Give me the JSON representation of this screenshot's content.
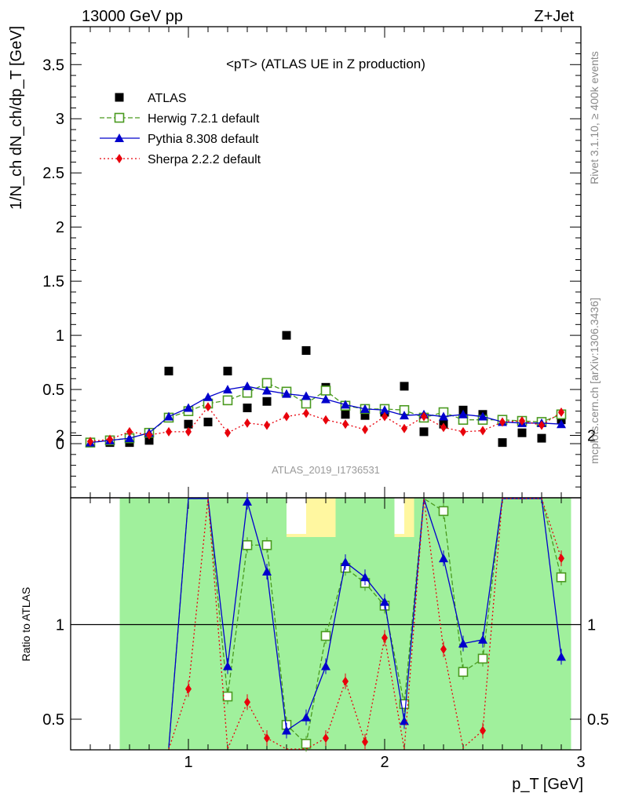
{
  "header": {
    "left": "13000 GeV pp",
    "right": "Z+Jet"
  },
  "side_labels": {
    "rivet": "Rivet 3.1.10, ≥ 400k events",
    "mcplots": "mcplots.cern.ch [arXiv:1306.3436]"
  },
  "chart_data": [
    {
      "type": "scatter",
      "title": "<pT> (ATLAS UE in Z production)",
      "ylabel": "1/N_ch dN_ch/dp_T [GeV]",
      "xlabel": "p_T [GeV]",
      "watermark": "ATLAS_2019_I1736531",
      "xlim": [
        0.4,
        3.0
      ],
      "ylim": [
        -0.5,
        3.85
      ],
      "yticks": [
        "0",
        "0.5",
        "1",
        "1.5",
        "2",
        "2.5",
        "3",
        "3.5"
      ],
      "xticks": [
        "1",
        "2",
        "3"
      ],
      "x": [
        0.5,
        0.6,
        0.7,
        0.8,
        0.9,
        1.0,
        1.1,
        1.2,
        1.3,
        1.4,
        1.5,
        1.6,
        1.7,
        1.8,
        1.9,
        2.0,
        2.1,
        2.2,
        2.3,
        2.4,
        2.5,
        2.6,
        2.7,
        2.8,
        2.9
      ],
      "series": [
        {
          "name": "ATLAS",
          "color": "#000000",
          "marker": "square",
          "values": [
            0.01,
            0.01,
            0.01,
            0.03,
            0.67,
            0.18,
            0.2,
            0.67,
            0.33,
            0.39,
            1.0,
            0.86,
            0.52,
            0.27,
            0.26,
            0.29,
            0.53,
            0.11,
            0.18,
            0.31,
            0.27,
            0.01,
            0.1,
            0.05,
            0.22
          ]
        },
        {
          "name": "Herwig 7.2.1 default",
          "color": "#4a9a1f",
          "marker": "open-square",
          "dash": "6,3",
          "values": [
            0.01,
            0.03,
            0.05,
            0.1,
            0.24,
            0.3,
            0.37,
            0.4,
            0.47,
            0.56,
            0.48,
            0.37,
            0.49,
            0.35,
            0.32,
            0.32,
            0.31,
            0.24,
            0.29,
            0.22,
            0.22,
            0.22,
            0.21,
            0.2,
            0.27
          ]
        },
        {
          "name": "Pythia 8.308 default",
          "color": "#0000cc",
          "marker": "triangle",
          "values": [
            0.01,
            0.03,
            0.05,
            0.1,
            0.25,
            0.33,
            0.43,
            0.5,
            0.53,
            0.49,
            0.46,
            0.44,
            0.41,
            0.36,
            0.32,
            0.31,
            0.26,
            0.27,
            0.25,
            0.27,
            0.25,
            0.2,
            0.19,
            0.19,
            0.18
          ]
        },
        {
          "name": "Sherpa 2.2.2 default",
          "color": "#e8000b",
          "marker": "diamond",
          "dash": "2,3",
          "values": [
            0.02,
            0.04,
            0.11,
            0.08,
            0.11,
            0.11,
            0.34,
            0.1,
            0.19,
            0.17,
            0.25,
            0.28,
            0.22,
            0.18,
            0.13,
            0.25,
            0.14,
            0.25,
            0.15,
            0.11,
            0.12,
            0.2,
            0.21,
            0.17,
            0.29
          ]
        }
      ]
    },
    {
      "type": "line",
      "ylabel": "Ratio to ATLAS",
      "xlim": [
        0.4,
        3.0
      ],
      "ylim": [
        0.35,
        2.25
      ],
      "yticks": [
        "0.5",
        "1",
        "2"
      ],
      "x": [
        0.9,
        1.0,
        1.1,
        1.2,
        1.3,
        1.4,
        1.5,
        1.6,
        1.7,
        1.8,
        1.9,
        2.0,
        2.1,
        2.2,
        2.3,
        2.4,
        2.5,
        2.6,
        2.7,
        2.8,
        2.9
      ],
      "series": [
        {
          "name": "Herwig 7.2.1 default",
          "color": "#4a9a1f",
          "values": [
            0.35,
            1.7,
            1.85,
            0.62,
            1.42,
            1.42,
            0.47,
            0.37,
            0.94,
            1.3,
            1.22,
            1.1,
            0.58,
            2.1,
            1.6,
            0.75,
            0.82,
            3.0,
            2.0,
            3.0,
            1.25
          ]
        },
        {
          "name": "Pythia 8.308 default",
          "color": "#0000cc",
          "values": [
            0.35,
            1.85,
            2.1,
            0.78,
            1.65,
            1.28,
            0.44,
            0.51,
            0.78,
            1.33,
            1.25,
            1.12,
            0.49,
            2.3,
            1.35,
            0.9,
            0.92,
            3.0,
            2.0,
            3.0,
            0.83
          ]
        },
        {
          "name": "Sherpa 2.2.2 default",
          "color": "#e8000b",
          "values": [
            0.3,
            0.66,
            1.75,
            0.15,
            0.59,
            0.4,
            0.25,
            0.33,
            0.4,
            0.7,
            0.38,
            0.93,
            0.26,
            2.2,
            0.87,
            0.35,
            0.44,
            3.0,
            2.0,
            3.0,
            1.35
          ]
        }
      ]
    }
  ]
}
